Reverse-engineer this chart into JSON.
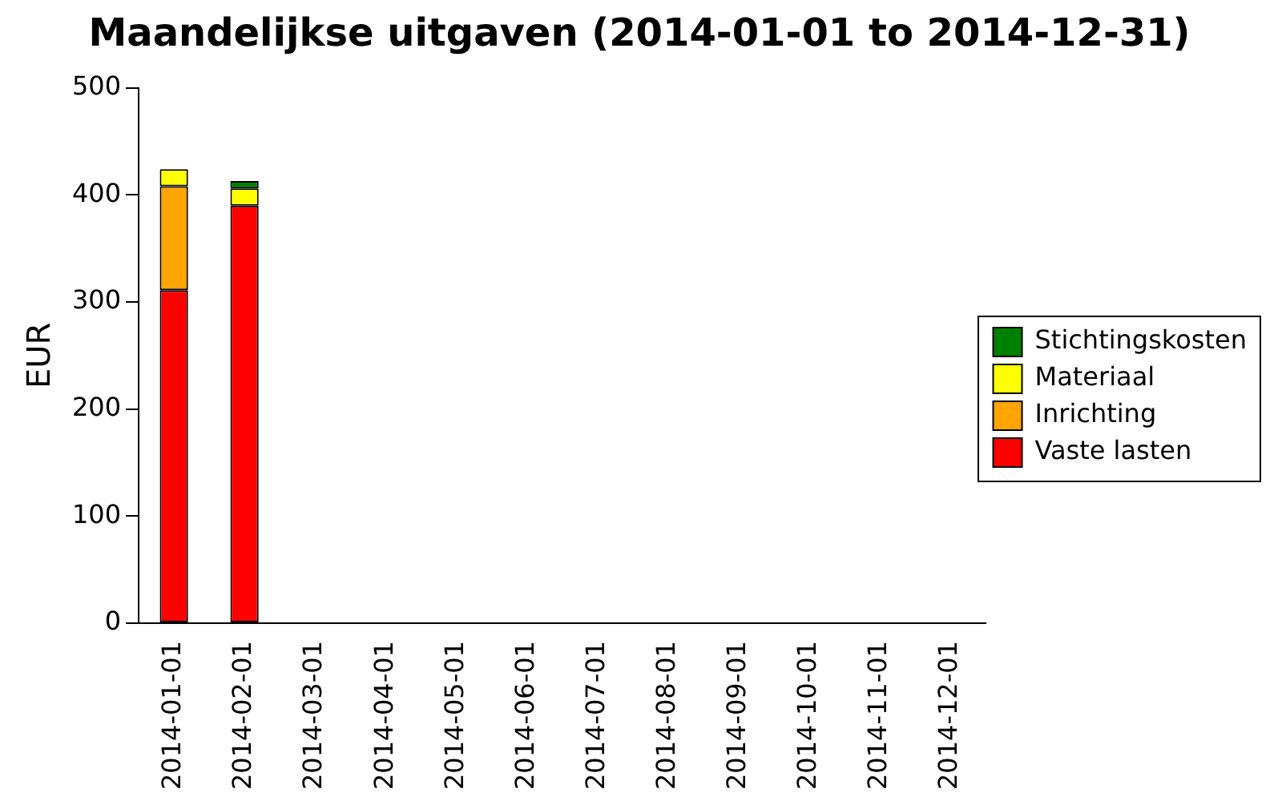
{
  "chart_data": {
    "type": "bar",
    "title": "Maandelijkse uitgaven (2014-01-01 to 2014-12-31)",
    "ylabel": "EUR",
    "categories": [
      "2014-01-01",
      "2014-02-01",
      "2014-03-01",
      "2014-04-01",
      "2014-05-01",
      "2014-06-01",
      "2014-07-01",
      "2014-08-01",
      "2014-09-01",
      "2014-10-01",
      "2014-11-01",
      "2014-12-01"
    ],
    "stacked": true,
    "series": [
      {
        "name": "Vaste lasten",
        "color": "#ff0000",
        "values": [
          311,
          390,
          0,
          0,
          0,
          0,
          0,
          0,
          0,
          0,
          0,
          0
        ]
      },
      {
        "name": "Inrichting",
        "color": "#ffa500",
        "values": [
          97,
          0,
          0,
          0,
          0,
          0,
          0,
          0,
          0,
          0,
          0,
          0
        ]
      },
      {
        "name": "Materiaal",
        "color": "#ffff00",
        "values": [
          16,
          16,
          0,
          0,
          0,
          0,
          0,
          0,
          0,
          0,
          0,
          0
        ]
      },
      {
        "name": "Stichtingskosten",
        "color": "#008000",
        "values": [
          0,
          7,
          0,
          0,
          0,
          0,
          0,
          0,
          0,
          0,
          0,
          0
        ]
      }
    ],
    "ylim": [
      0,
      500
    ],
    "yticks": [
      0,
      100,
      200,
      300,
      400,
      500
    ],
    "grid": false,
    "legend": "right"
  }
}
